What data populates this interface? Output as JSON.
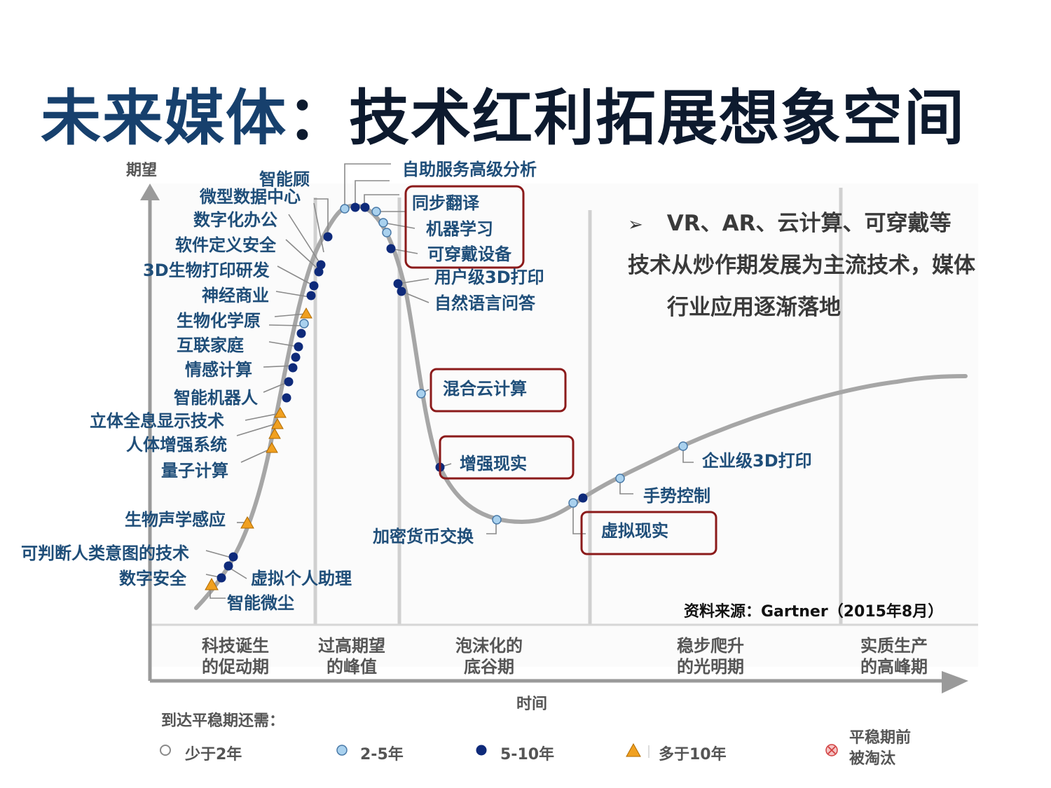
{
  "slide": {
    "title_part1": "未来媒体",
    "title_part2": "：技术红利拓展想象空间"
  },
  "bullet": {
    "marker": "➢",
    "line1": "VR、AR、云计算、可穿戴等",
    "line2": "技术从炒作期发展为主流技术，媒体",
    "line3": "行业应用逐渐落地"
  },
  "diagram": {
    "y_axis_label": "期望",
    "x_axis_label": "时间",
    "source": "资料来源：Gartner（2015年8月）",
    "phases": [
      {
        "line1": "科技诞生",
        "line2": "的促动期"
      },
      {
        "line1": "过高期望",
        "line2": "的峰值"
      },
      {
        "line1": "泡沫化的",
        "line2": "底谷期"
      },
      {
        "line1": "稳步爬升",
        "line2": "的光明期"
      },
      {
        "line1": "实质生产",
        "line2": "的高峰期"
      }
    ],
    "technologies": [
      {
        "name": "自助服务高级分析",
        "category": "2-5年"
      },
      {
        "name": "智能顾",
        "category": "5-10年"
      },
      {
        "name": "微型数据中心",
        "category": "5-10年"
      },
      {
        "name": "数字化办公",
        "category": "2-5年"
      },
      {
        "name": "同步翻译",
        "category": "2-5年",
        "highlight": true
      },
      {
        "name": "机器学习",
        "category": "2-5年",
        "highlight": true
      },
      {
        "name": "可穿戴设备",
        "category": "5-10年",
        "highlight": true
      },
      {
        "name": "软件定义安全",
        "category": "5-10年"
      },
      {
        "name": "3D生物打印研发",
        "category": "5-10年"
      },
      {
        "name": "用户级3D打印",
        "category": "5-10年"
      },
      {
        "name": "自然语言问答",
        "category": "5-10年"
      },
      {
        "name": "神经商业",
        "category": "多于10年"
      },
      {
        "name": "生物化学原",
        "category": "2-5年"
      },
      {
        "name": "互联家庭",
        "category": "5-10年"
      },
      {
        "name": "情感计算",
        "category": "5-10年"
      },
      {
        "name": "智能机器人",
        "category": "5-10年"
      },
      {
        "name": "混合云计算",
        "category": "2-5年",
        "highlight": true
      },
      {
        "name": "立体全息显示技术",
        "category": "多于10年"
      },
      {
        "name": "人体增强系统",
        "category": "多于10年"
      },
      {
        "name": "量子计算",
        "category": "多于10年"
      },
      {
        "name": "增强现实",
        "category": "5-10年",
        "highlight": true
      },
      {
        "name": "企业级3D打印",
        "category": "2-5年"
      },
      {
        "name": "手势控制",
        "category": "2-5年"
      },
      {
        "name": "生物声学感应",
        "category": "多于10年"
      },
      {
        "name": "虚拟现实",
        "category": "5-10年",
        "highlight": true
      },
      {
        "name": "加密货币交换",
        "category": "2-5年"
      },
      {
        "name": "可判断人类意图的技术",
        "category": "5-10年"
      },
      {
        "name": "虚拟个人助理",
        "category": "5-10年"
      },
      {
        "name": "数字安全",
        "category": "多于10年"
      },
      {
        "name": "智能微尘",
        "category": "5-10年"
      }
    ],
    "legend": {
      "title": "到达平稳期还需：",
      "items": [
        {
          "label": "少于2年",
          "icon": "hollow-circle-icon"
        },
        {
          "label": "2-5年",
          "icon": "light-blue-circle-icon"
        },
        {
          "label": "5-10年",
          "icon": "dark-blue-circle-icon"
        },
        {
          "label": "多于10年",
          "icon": "orange-triangle-icon"
        },
        {
          "label_line1": "平稳期前",
          "label_line2": "被淘汰",
          "icon": "red-cross-circle-icon"
        }
      ]
    },
    "colors": {
      "curve": "#a6a6a6",
      "label_blue": "#1f4e79",
      "dark_blue_dot": "#0e2a7a",
      "light_blue_dot": "#a9d1ee",
      "triangle": "#f0a020",
      "highlight_box": "#8b1a1a"
    }
  }
}
